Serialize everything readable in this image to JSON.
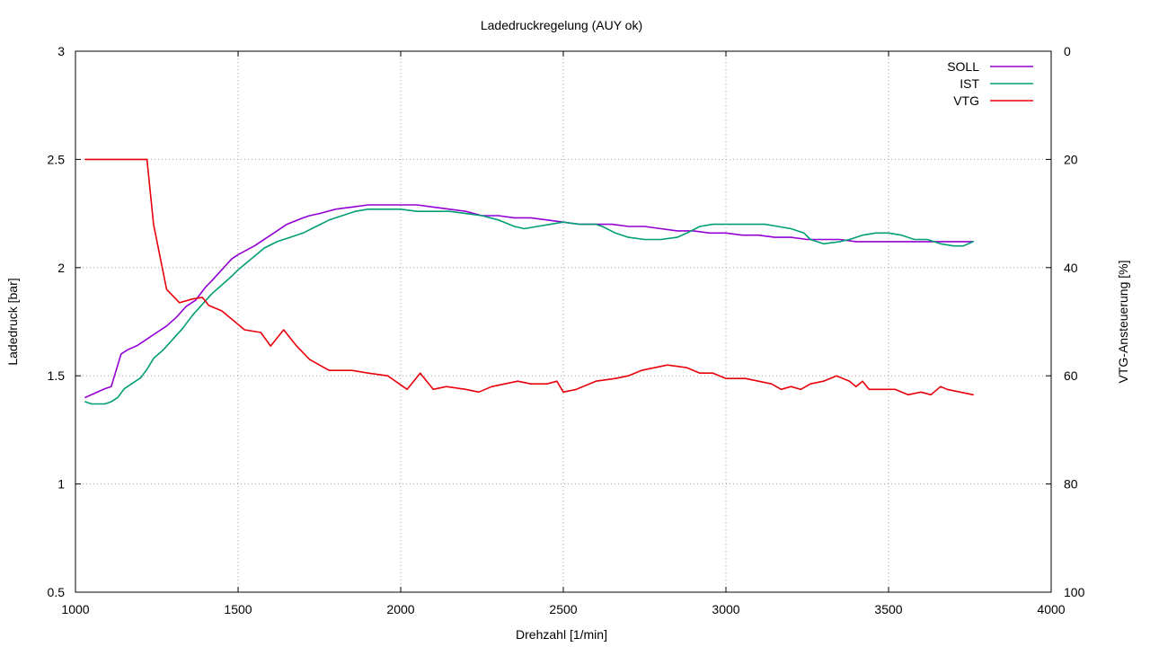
{
  "chart_data": {
    "type": "line",
    "title": "Ladedruckregelung (AUY ok)",
    "xlabel": "Drehzahl [1/min]",
    "ylabel": "Ladedruck [bar]",
    "y2label": "VTG-Ansteuerung [%]",
    "xlim": [
      1000,
      4000
    ],
    "ylim": [
      0.5,
      3
    ],
    "y2lim": [
      0,
      100
    ],
    "y2_reversed": true,
    "grid": true,
    "legend_position": "top-right",
    "xticks": [
      1000,
      1500,
      2000,
      2500,
      3000,
      3500,
      4000
    ],
    "xtick_labels": [
      "1000",
      "1500",
      "2000",
      "2500",
      "3000",
      "3500",
      "4000"
    ],
    "yticks": [
      0.5,
      1,
      1.5,
      2,
      2.5,
      3
    ],
    "ytick_labels": [
      "0.5",
      "1",
      "1.5",
      "2",
      "2.5",
      "3"
    ],
    "y2ticks": [
      0,
      20,
      40,
      60,
      80,
      100
    ],
    "y2tick_labels": [
      "0",
      "20",
      "40",
      "60",
      "80",
      "100"
    ],
    "series": [
      {
        "name": "SOLL",
        "axis": "y",
        "color": "#9400d3",
        "x": [
          1030,
          1060,
          1090,
          1110,
          1140,
          1160,
          1190,
          1220,
          1250,
          1280,
          1310,
          1340,
          1370,
          1400,
          1420,
          1450,
          1480,
          1500,
          1550,
          1600,
          1650,
          1700,
          1720,
          1750,
          1800,
          1850,
          1900,
          1950,
          2000,
          2050,
          2100,
          2150,
          2200,
          2250,
          2300,
          2350,
          2400,
          2450,
          2500,
          2550,
          2600,
          2650,
          2700,
          2750,
          2800,
          2850,
          2900,
          2950,
          3000,
          3050,
          3100,
          3150,
          3200,
          3250,
          3300,
          3350,
          3400,
          3450,
          3500,
          3550,
          3600,
          3650,
          3700,
          3760
        ],
        "values": [
          1.4,
          1.42,
          1.44,
          1.45,
          1.6,
          1.62,
          1.64,
          1.67,
          1.7,
          1.73,
          1.77,
          1.82,
          1.85,
          1.91,
          1.94,
          1.99,
          2.04,
          2.06,
          2.1,
          2.15,
          2.2,
          2.23,
          2.24,
          2.25,
          2.27,
          2.28,
          2.29,
          2.29,
          2.29,
          2.29,
          2.28,
          2.27,
          2.26,
          2.24,
          2.24,
          2.23,
          2.23,
          2.22,
          2.21,
          2.2,
          2.2,
          2.2,
          2.19,
          2.19,
          2.18,
          2.17,
          2.17,
          2.16,
          2.16,
          2.15,
          2.15,
          2.14,
          2.14,
          2.13,
          2.13,
          2.13,
          2.12,
          2.12,
          2.12,
          2.12,
          2.12,
          2.12,
          2.12,
          2.12
        ]
      },
      {
        "name": "IST",
        "axis": "y",
        "color": "#009e73",
        "x": [
          1030,
          1050,
          1070,
          1090,
          1110,
          1130,
          1150,
          1170,
          1200,
          1220,
          1240,
          1270,
          1300,
          1330,
          1360,
          1390,
          1420,
          1450,
          1480,
          1500,
          1540,
          1580,
          1620,
          1660,
          1700,
          1740,
          1780,
          1820,
          1860,
          1900,
          1950,
          2000,
          2050,
          2100,
          2150,
          2200,
          2250,
          2300,
          2350,
          2380,
          2420,
          2460,
          2500,
          2550,
          2600,
          2620,
          2660,
          2700,
          2750,
          2800,
          2850,
          2880,
          2920,
          2960,
          3000,
          3040,
          3080,
          3120,
          3160,
          3200,
          3240,
          3260,
          3300,
          3350,
          3380,
          3420,
          3460,
          3500,
          3540,
          3580,
          3620,
          3660,
          3700,
          3730,
          3760
        ],
        "values": [
          1.38,
          1.37,
          1.37,
          1.37,
          1.38,
          1.4,
          1.44,
          1.46,
          1.49,
          1.53,
          1.58,
          1.62,
          1.67,
          1.72,
          1.78,
          1.83,
          1.88,
          1.92,
          1.96,
          1.99,
          2.04,
          2.09,
          2.12,
          2.14,
          2.16,
          2.19,
          2.22,
          2.24,
          2.26,
          2.27,
          2.27,
          2.27,
          2.26,
          2.26,
          2.26,
          2.25,
          2.24,
          2.22,
          2.19,
          2.18,
          2.19,
          2.2,
          2.21,
          2.2,
          2.2,
          2.19,
          2.16,
          2.14,
          2.13,
          2.13,
          2.14,
          2.16,
          2.19,
          2.2,
          2.2,
          2.2,
          2.2,
          2.2,
          2.19,
          2.18,
          2.16,
          2.13,
          2.11,
          2.12,
          2.13,
          2.15,
          2.16,
          2.16,
          2.15,
          2.13,
          2.13,
          2.11,
          2.1,
          2.1,
          2.12
        ]
      },
      {
        "name": "VTG",
        "axis": "y2",
        "color": "#e8000b",
        "x": [
          1030,
          1100,
          1150,
          1220,
          1240,
          1280,
          1320,
          1360,
          1390,
          1410,
          1450,
          1480,
          1520,
          1570,
          1600,
          1640,
          1680,
          1720,
          1780,
          1850,
          1900,
          1960,
          2020,
          2060,
          2100,
          2140,
          2200,
          2240,
          2280,
          2320,
          2360,
          2400,
          2450,
          2480,
          2500,
          2540,
          2600,
          2660,
          2700,
          2740,
          2780,
          2820,
          2880,
          2920,
          2960,
          3000,
          3030,
          3060,
          3100,
          3140,
          3170,
          3200,
          3230,
          3260,
          3300,
          3340,
          3380,
          3400,
          3420,
          3440,
          3480,
          3520,
          3560,
          3600,
          3630,
          3660,
          3680,
          3720,
          3760
        ],
        "values": [
          20,
          20,
          20,
          20,
          32,
          44,
          46.5,
          45.8,
          45.5,
          47,
          48,
          49.5,
          51.5,
          52,
          54.5,
          51.5,
          54.5,
          57,
          59,
          59,
          59.5,
          60,
          62.5,
          59.5,
          62.5,
          62,
          62.5,
          63,
          62,
          61.5,
          61,
          61.5,
          61.5,
          61,
          63,
          62.5,
          61,
          60.5,
          60,
          59,
          58.5,
          58,
          58.5,
          59.5,
          59.5,
          60.5,
          60.5,
          60.5,
          61,
          61.5,
          62.5,
          62,
          62.5,
          61.5,
          61,
          60,
          61,
          62,
          61,
          62.5,
          62.5,
          62.5,
          63.5,
          63,
          63.5,
          62,
          62.5,
          63,
          63.5
        ]
      }
    ]
  }
}
